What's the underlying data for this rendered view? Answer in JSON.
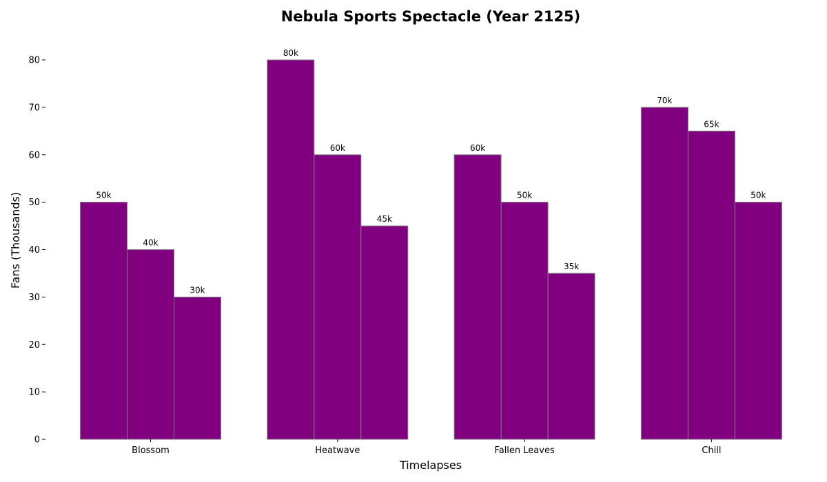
{
  "chart_data": {
    "type": "bar",
    "title": "Nebula Sports Spectacle (Year 2125)",
    "xlabel": "Timelapses",
    "ylabel": "Fans (Thousands)",
    "categories": [
      "Blossom",
      "Heatwave",
      "Fallen Leaves",
      "Chill"
    ],
    "series": [
      {
        "values": [
          50,
          80,
          60,
          70
        ],
        "labels": [
          "50k",
          "80k",
          "60k",
          "70k"
        ]
      },
      {
        "values": [
          40,
          60,
          50,
          65
        ],
        "labels": [
          "40k",
          "60k",
          "50k",
          "65k"
        ]
      },
      {
        "values": [
          30,
          45,
          35,
          50
        ],
        "labels": [
          "30k",
          "45k",
          "35k",
          "50k"
        ]
      }
    ],
    "ylim": [
      0,
      85
    ],
    "yticks": [
      0,
      10,
      20,
      30,
      40,
      50,
      60,
      70,
      80
    ],
    "grid": false,
    "colors": {
      "bar_fill": "#800080",
      "bar_edge": "#808080"
    }
  }
}
